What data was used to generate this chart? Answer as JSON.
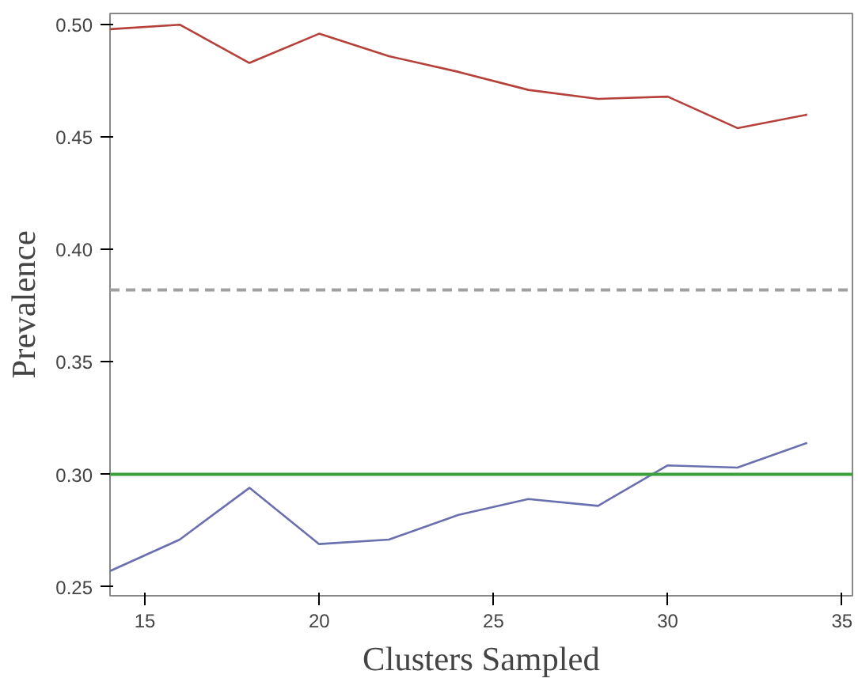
{
  "chart_data": {
    "type": "line",
    "xlabel": "Clusters Sampled",
    "ylabel": "Prevalence",
    "x": [
      14,
      16,
      18,
      20,
      22,
      24,
      26,
      28,
      30,
      32,
      34
    ],
    "series": [
      {
        "color": "#b5413a",
        "values": [
          0.498,
          0.5,
          0.483,
          0.496,
          0.486,
          0.479,
          0.471,
          0.467,
          0.468,
          0.454,
          0.46
        ]
      },
      {
        "color": "#6a6fb0",
        "values": [
          0.257,
          0.271,
          0.294,
          0.269,
          0.271,
          0.282,
          0.289,
          0.286,
          0.304,
          0.303,
          0.314
        ]
      }
    ],
    "ref_lines": [
      {
        "axis": "y",
        "value": 0.382,
        "color": "#a0a0a0",
        "line_style": "dashed"
      },
      {
        "axis": "y",
        "value": 0.3,
        "color": "#3aa03a",
        "line_style": "solid"
      }
    ],
    "xlim": [
      14,
      35.3
    ],
    "ylim": [
      0.246,
      0.505
    ],
    "xticks": [
      15,
      20,
      25,
      30,
      35
    ],
    "yticks": [
      {
        "value": 0.25,
        "label": "0.25"
      },
      {
        "value": 0.3,
        "label": "0.30"
      },
      {
        "value": 0.35,
        "label": "0.35"
      },
      {
        "value": 0.4,
        "label": "0.40"
      },
      {
        "value": 0.45,
        "label": "0.45"
      },
      {
        "value": 0.5,
        "label": "0.50"
      }
    ],
    "grid": false
  }
}
